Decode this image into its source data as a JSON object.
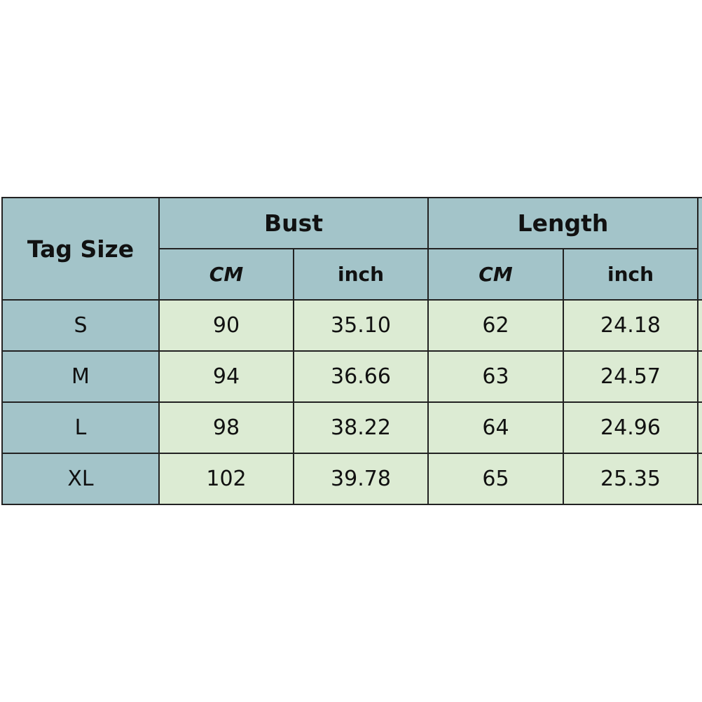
{
  "header": {
    "tag_size": "Tag Size",
    "bust": "Bust",
    "length": "Length",
    "sub": [
      "CM",
      "inch",
      "CM",
      "inch"
    ]
  },
  "colors": {
    "header_bg": "#a3c4c9",
    "data_bg": "#dcebd3"
  },
  "rows": [
    {
      "size": "S",
      "bust_cm": "90",
      "bust_inch": "35.10",
      "length_cm": "62",
      "length_inch": "24.18"
    },
    {
      "size": "M",
      "bust_cm": "94",
      "bust_inch": "36.66",
      "length_cm": "63",
      "length_inch": "24.57"
    },
    {
      "size": "L",
      "bust_cm": "98",
      "bust_inch": "38.22",
      "length_cm": "64",
      "length_inch": "24.96"
    },
    {
      "size": "XL",
      "bust_cm": "102",
      "bust_inch": "39.78",
      "length_cm": "65",
      "length_inch": "25.35"
    }
  ]
}
